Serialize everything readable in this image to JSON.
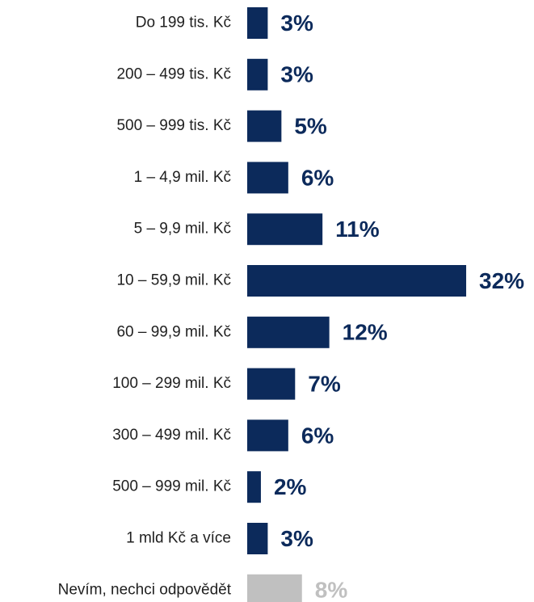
{
  "chart_data": {
    "type": "bar",
    "orientation": "horizontal",
    "categories": [
      "Do 199 tis. Kč",
      "200 – 499 tis. Kč",
      "500 – 999 tis. Kč",
      "1 – 4,9 mil. Kč",
      "5 – 9,9 mil. Kč",
      "10 – 59,9 mil. Kč",
      "60 – 99,9 mil. Kč",
      "100 – 299 mil. Kč",
      "300 – 499 mil. Kč",
      "500 – 999 mil. Kč",
      "1 mld Kč a více",
      "Nevím, nechci odpovědět"
    ],
    "values": [
      3,
      3,
      5,
      6,
      11,
      32,
      12,
      7,
      6,
      2,
      3,
      8
    ],
    "value_labels": [
      "3%",
      "3%",
      "5%",
      "6%",
      "11%",
      "32%",
      "12%",
      "7%",
      "6%",
      "2%",
      "3%",
      "8%"
    ],
    "bar_colors": [
      "#0c2a5b",
      "#0c2a5b",
      "#0c2a5b",
      "#0c2a5b",
      "#0c2a5b",
      "#0c2a5b",
      "#0c2a5b",
      "#0c2a5b",
      "#0c2a5b",
      "#0c2a5b",
      "#0c2a5b",
      "#c0c0c0"
    ],
    "label_colors": [
      "#0c2a5b",
      "#0c2a5b",
      "#0c2a5b",
      "#0c2a5b",
      "#0c2a5b",
      "#0c2a5b",
      "#0c2a5b",
      "#0c2a5b",
      "#0c2a5b",
      "#0c2a5b",
      "#0c2a5b",
      "#c0c0c0"
    ],
    "title": "",
    "xlabel": "",
    "ylabel": "",
    "grid": false,
    "legend": "none"
  }
}
